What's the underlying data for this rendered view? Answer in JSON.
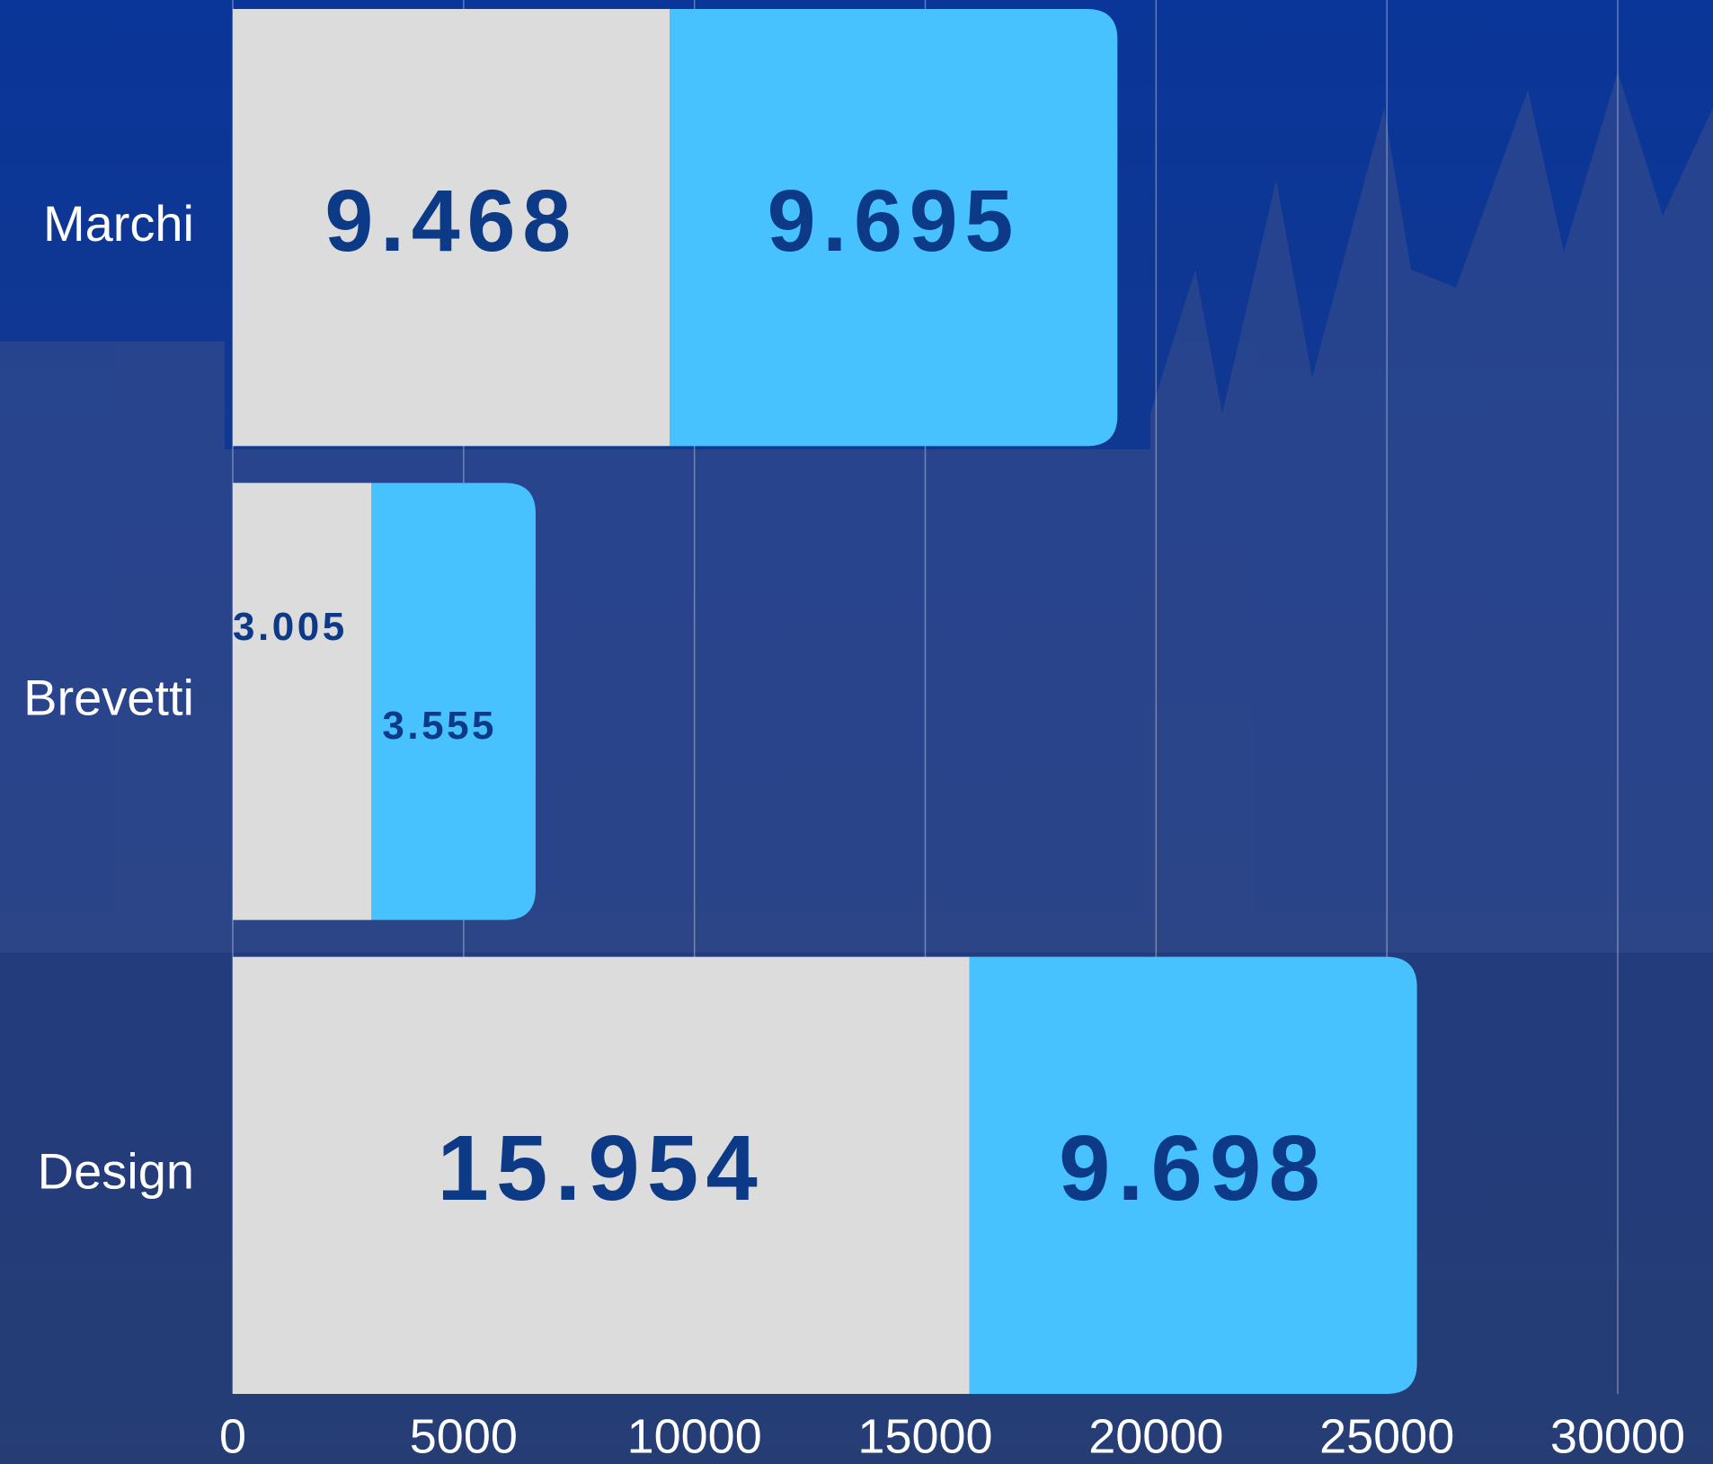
{
  "chart_data": {
    "type": "stacked-barh",
    "categories": [
      "Marchi",
      "Brevetti",
      "Design"
    ],
    "series": [
      {
        "color": "#dcdcdc",
        "values": [
          9468,
          3005,
          15954
        ],
        "value_labels": [
          "9.468",
          "3.005",
          "15.954"
        ]
      },
      {
        "color": "#47c2ff",
        "values": [
          9695,
          3555,
          9698
        ],
        "value_labels": [
          "9.695",
          "3.555",
          "9.698"
        ]
      }
    ],
    "label_color": "#0c3a86",
    "xlim": [
      0,
      30000
    ],
    "xticks": [
      0,
      5000,
      10000,
      15000,
      20000,
      25000,
      30000
    ],
    "grid": true
  }
}
